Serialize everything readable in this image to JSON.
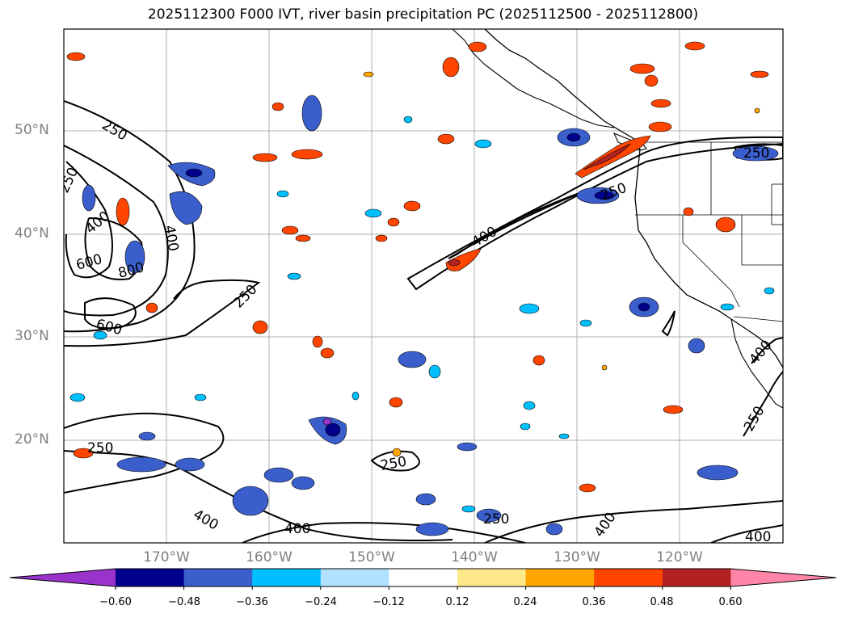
{
  "title": "2025112300 F000 IVT, river basin precipitation PC (2025112500 - 2025112800)",
  "lat_labels": [
    "50°N",
    "40°N",
    "30°N",
    "20°N"
  ],
  "lon_labels": [
    "170°W",
    "160°W",
    "150°W",
    "140°W",
    "130°W",
    "120°W"
  ],
  "contour_labels": [
    "250",
    "250",
    "400",
    "600",
    "800",
    "600",
    "400",
    "250",
    "400",
    "250",
    "250",
    "250",
    "250",
    "400",
    "250",
    "400",
    "400",
    "400",
    "250",
    "400"
  ],
  "colorbar": {
    "ticks": [
      "−0.60",
      "−0.48",
      "−0.36",
      "−0.24",
      "−0.12",
      "0.12",
      "0.24",
      "0.36",
      "0.48",
      "0.60"
    ],
    "colors": [
      "#9933cc",
      "#00008b",
      "#3a5fcd",
      "#00bfff",
      "#b0e2ff",
      "#ffffff",
      "#ffe88a",
      "#ffa500",
      "#ff4500",
      "#b22222",
      "#ff85a8"
    ]
  }
}
